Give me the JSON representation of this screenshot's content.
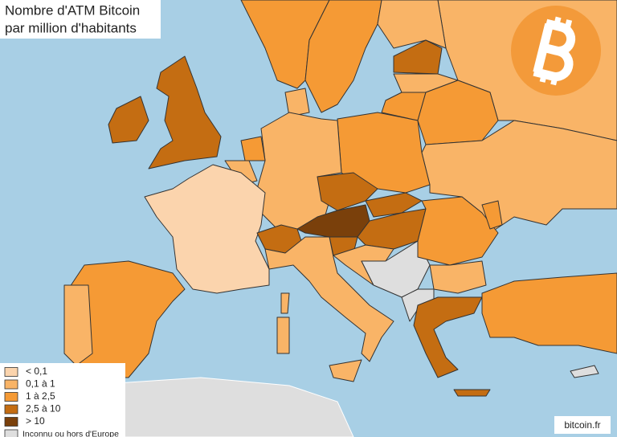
{
  "title_lines": [
    "Nombre d'ATM Bitcoin",
    "par million d'habitants"
  ],
  "legend": [
    {
      "label": "< 0,1",
      "color": "#fbd4ad"
    },
    {
      "label": "0,1 à 1",
      "color": "#f9b467"
    },
    {
      "label": "1 à 2,5",
      "color": "#f59a35"
    },
    {
      "label": "2,5 à 10",
      "color": "#c46d12"
    },
    {
      "label": "> 10",
      "color": "#7a400b"
    }
  ],
  "unknown": {
    "label": "Inconnu ou hors d'Europe",
    "color": "#dedede"
  },
  "source": "bitcoin.fr"
}
